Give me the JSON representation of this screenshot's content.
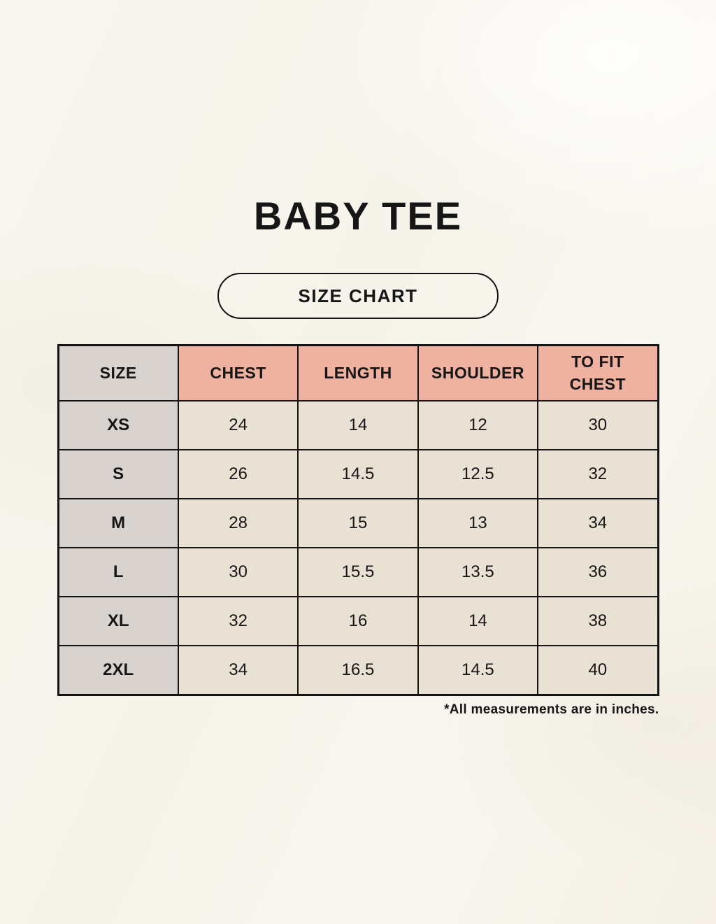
{
  "page": {
    "title": "BABY TEE",
    "size_chart_button_label": "SIZE CHART",
    "footnote": "*All measurements are in inches."
  },
  "colors": {
    "background": "#f7f4ed",
    "header_fill": "#efb1a0",
    "size_column_fill": "#d9d3cf",
    "body_cell_fill": "#e9e2d4",
    "border": "#141414",
    "text": "#161616"
  },
  "table": {
    "headers": [
      "SIZE",
      "CHEST",
      "LENGTH",
      "SHOULDER",
      "TO FIT CHEST"
    ],
    "rows": [
      {
        "size": "XS",
        "values": [
          "24",
          "14",
          "12",
          "30"
        ]
      },
      {
        "size": "S",
        "values": [
          "26",
          "14.5",
          "12.5",
          "32"
        ]
      },
      {
        "size": "M",
        "values": [
          "28",
          "15",
          "13",
          "34"
        ]
      },
      {
        "size": "L",
        "values": [
          "30",
          "15.5",
          "13.5",
          "36"
        ]
      },
      {
        "size": "XL",
        "values": [
          "32",
          "16",
          "14",
          "38"
        ]
      },
      {
        "size": "2XL",
        "values": [
          "34",
          "16.5",
          "14.5",
          "40"
        ]
      }
    ],
    "units": "inches"
  }
}
